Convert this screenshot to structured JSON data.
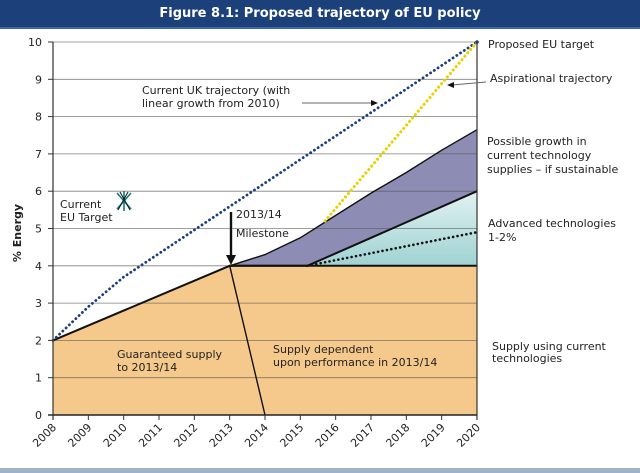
{
  "chart_data": {
    "type": "area",
    "title": "Figure 8.1: Proposed trajectory of EU policy",
    "xlabel": "",
    "ylabel": "% Energy",
    "xlim": [
      2008,
      2020
    ],
    "ylim": [
      0,
      10
    ],
    "grid": true,
    "x_ticks": [
      "2008",
      "2009",
      "2010",
      "2011",
      "2012",
      "2013",
      "2014",
      "2015",
      "2016",
      "2017",
      "2018",
      "2019",
      "2020"
    ],
    "y_ticks": [
      "0",
      "1",
      "2",
      "3",
      "4",
      "5",
      "6",
      "7",
      "8",
      "9",
      "10"
    ],
    "series": [
      {
        "name": "Supply using current technologies",
        "kind": "area",
        "color": "#f5c98c",
        "points": [
          [
            2008,
            2
          ],
          [
            2013,
            4
          ],
          [
            2020,
            4
          ]
        ]
      },
      {
        "name": "Possible growth in current technology supplies - if sustainable",
        "kind": "band",
        "color": "#8c8cb4",
        "upper": [
          [
            2013,
            4
          ],
          [
            2014,
            4.3
          ],
          [
            2015,
            4.75
          ],
          [
            2016,
            5.35
          ],
          [
            2017,
            5.95
          ],
          [
            2018,
            6.5
          ],
          [
            2019,
            7.1
          ],
          [
            2020,
            7.65
          ]
        ],
        "lower": [
          [
            2013,
            4
          ],
          [
            2015.2,
            4
          ],
          [
            2020,
            6
          ]
        ]
      },
      {
        "name": "Advanced technologies 1-2%",
        "kind": "band",
        "color": "#bfe3e3",
        "upper": [
          [
            2015.2,
            4
          ],
          [
            2020,
            6
          ]
        ],
        "lower": [
          [
            2015.2,
            4
          ],
          [
            2020,
            4
          ]
        ]
      },
      {
        "name": "Current UK trajectory (with linear growth from 2010)",
        "kind": "dotted-line",
        "color": "#1c3f7a",
        "points": [
          [
            2008,
            2
          ],
          [
            2009,
            2.9
          ],
          [
            2010,
            3.7
          ],
          [
            2020,
            10
          ]
        ]
      },
      {
        "name": "Aspirational trajectory",
        "kind": "dotted-line",
        "color": "#e6d200",
        "points": [
          [
            2015.7,
            5.2
          ],
          [
            2020,
            10
          ]
        ]
      },
      {
        "name": "Advanced technologies dotted trend",
        "kind": "dotted-line",
        "color": "#111111",
        "points": [
          [
            2015.2,
            4
          ],
          [
            2020,
            4.9
          ]
        ]
      },
      {
        "name": "Milestone split",
        "kind": "line",
        "color": "#111111",
        "points": [
          [
            2013,
            4
          ],
          [
            2014,
            0
          ]
        ]
      }
    ],
    "annotations": [
      {
        "text": "Proposed EU target",
        "value": 10
      },
      {
        "text": "Aspirational trajectory"
      },
      {
        "text": "Possible growth in current technology supplies – if sustainable"
      },
      {
        "text": "Advanced technologies 1-2%"
      },
      {
        "text": "Supply using current technologies"
      },
      {
        "text": "Current UK trajectory (with linear growth from 2010)"
      },
      {
        "text": "Current EU Target",
        "marker": "asterisk",
        "x": 2010,
        "y": 5.8
      },
      {
        "text": "2013/14 Milestone",
        "arrow_to": [
          2013,
          4
        ]
      },
      {
        "text": "Guaranteed supply to 2013/14"
      },
      {
        "text": "Supply dependent upon performance in 2013/14"
      }
    ]
  },
  "labels": {
    "title": "Figure 8.1: Proposed trajectory of EU policy",
    "ylabel": "% Energy",
    "proposed_eu_target": "Proposed EU target",
    "aspirational": "Aspirational trajectory",
    "possible_growth": [
      "Possible growth in",
      "current technology",
      "supplies – if sustainable"
    ],
    "advanced": [
      "Advanced technologies",
      "1-2%"
    ],
    "supply_current": [
      "Supply using current",
      "technologies"
    ],
    "uk_trajectory": [
      "Current UK trajectory (with",
      "linear growth from 2010)"
    ],
    "current_eu_target": [
      "Current",
      "EU Target"
    ],
    "milestone": [
      "2013/14",
      "Milestone"
    ],
    "guaranteed": [
      "Guaranteed supply",
      "to 2013/14"
    ],
    "dependent": [
      "Supply dependent",
      "upon performance in 2013/14"
    ]
  }
}
